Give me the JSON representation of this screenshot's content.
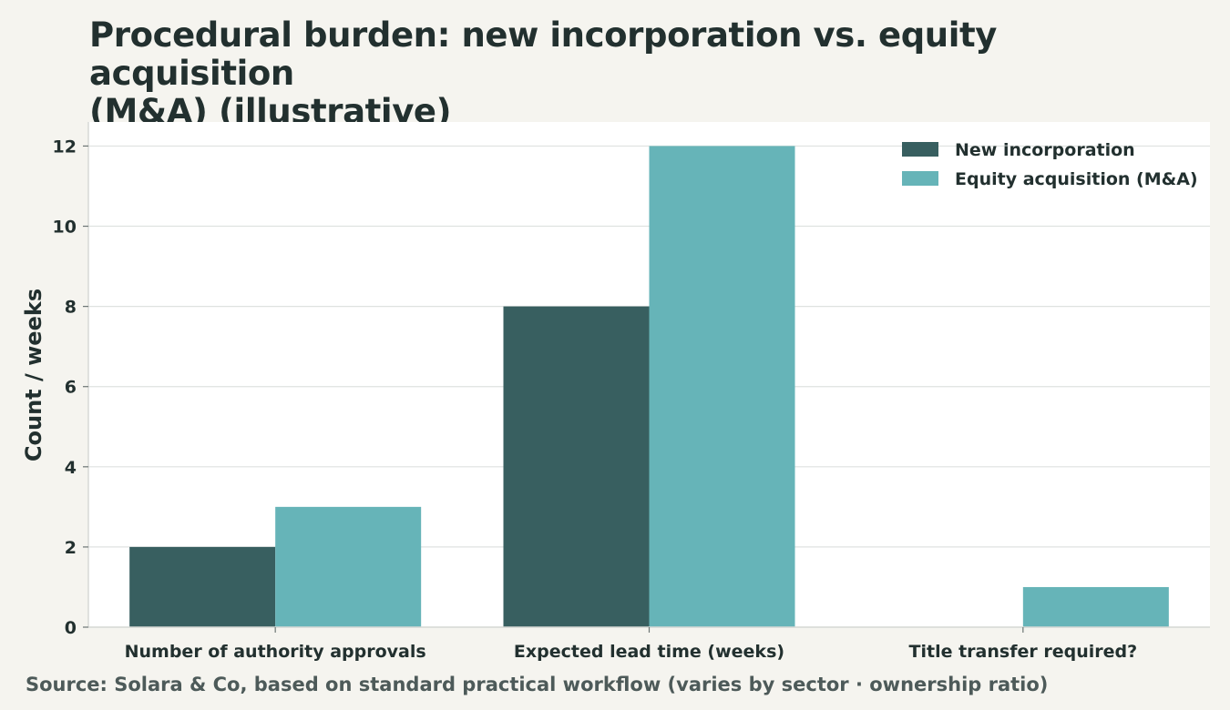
{
  "chart_data": {
    "type": "bar",
    "title": "Procedural burden: new incorporation vs. equity acquisition (M&A) (illustrative)",
    "title_line1": "Procedural burden: new incorporation vs. equity acquisition",
    "title_line2": "(M&A) (illustrative)",
    "xlabel": "",
    "ylabel": "Count / weeks",
    "ylim": [
      0,
      12.6
    ],
    "yticks": [
      0,
      2,
      4,
      6,
      8,
      10,
      12
    ],
    "grid": true,
    "legend_position": "top-right",
    "categories": [
      "Number of authority approvals",
      "Expected lead time (weeks)",
      "Title transfer required?"
    ],
    "series": [
      {
        "name": "New incorporation",
        "color": "#385f60",
        "values": [
          2,
          8,
          0
        ]
      },
      {
        "name": "Equity acquisition (M&A)",
        "color": "#66b4b8",
        "values": [
          3,
          12,
          1
        ]
      }
    ]
  },
  "source": "Source: Solara & Co, based on standard practical workflow (varies by sector · ownership ratio)"
}
